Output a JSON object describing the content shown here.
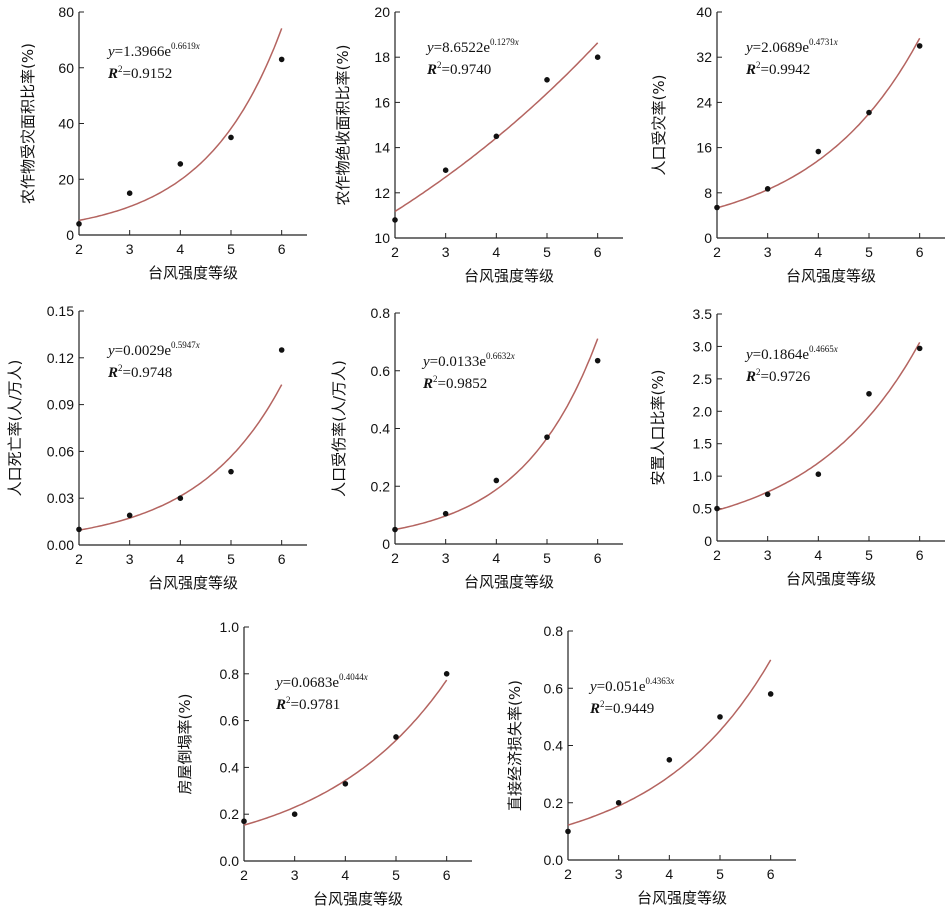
{
  "chart_data": [
    {
      "type": "scatter",
      "xlabel": "台风强度等级",
      "ylabel": "农作物受灾面积比率(%)",
      "x": [
        2,
        3,
        4,
        5,
        6
      ],
      "y": [
        4,
        15,
        25.5,
        35,
        63
      ],
      "xlim": [
        2,
        6.5
      ],
      "ylim": [
        0,
        80
      ],
      "yticks": [
        "0",
        "20",
        "40",
        "60",
        "80"
      ],
      "fit": {
        "a": 1.3966,
        "b": 0.6619,
        "eq_a": "1.3966",
        "eq_b": "0.6619",
        "r2": "0.9152"
      },
      "grid": false
    },
    {
      "type": "scatter",
      "xlabel": "台风强度等级",
      "ylabel": "农作物绝收面积比率(%)",
      "x": [
        2,
        3,
        4,
        5,
        6
      ],
      "y": [
        10.8,
        13,
        14.5,
        17,
        18
      ],
      "xlim": [
        2,
        6.5
      ],
      "ylim": [
        10,
        20
      ],
      "yticks": [
        "10",
        "12",
        "14",
        "16",
        "18",
        "20"
      ],
      "fit": {
        "a": 8.6522,
        "b": 0.1279,
        "eq_a": "8.6522",
        "eq_b": "0.1279",
        "r2": "0.9740"
      },
      "grid": false
    },
    {
      "type": "scatter",
      "xlabel": "台风强度等级",
      "ylabel": "人口受灾率(%)",
      "x": [
        2,
        3,
        4,
        5,
        6
      ],
      "y": [
        5.4,
        8.7,
        15.3,
        22.2,
        34
      ],
      "xlim": [
        2,
        6.5
      ],
      "ylim": [
        0,
        40
      ],
      "yticks": [
        "0",
        "8",
        "16",
        "24",
        "32",
        "40"
      ],
      "fit": {
        "a": 2.0689,
        "b": 0.4731,
        "eq_a": "2.0689",
        "eq_b": "0.4731",
        "r2": "0.9942"
      },
      "grid": false
    },
    {
      "type": "scatter",
      "xlabel": "台风强度等级",
      "ylabel": "人口死亡率(人/万人)",
      "x": [
        2,
        3,
        4,
        5,
        6
      ],
      "y": [
        0.01,
        0.019,
        0.03,
        0.047,
        0.125
      ],
      "xlim": [
        2,
        6.5
      ],
      "ylim": [
        0,
        0.15
      ],
      "yticks": [
        "0.00",
        "0.03",
        "0.06",
        "0.09",
        "0.12",
        "0.15"
      ],
      "fit": {
        "a": 0.0029,
        "b": 0.5947,
        "eq_a": "0.0029",
        "eq_b": "0.5947",
        "r2": "0.9748"
      },
      "grid": false
    },
    {
      "type": "scatter",
      "xlabel": "台风强度等级",
      "ylabel": "人口受伤率(人/万人)",
      "x": [
        2,
        3,
        4,
        5,
        6
      ],
      "y": [
        0.05,
        0.105,
        0.22,
        0.37,
        0.635
      ],
      "xlim": [
        2,
        6.5
      ],
      "ylim": [
        0,
        0.8
      ],
      "yticks": [
        "0",
        "0.2",
        "0.4",
        "0.6",
        "0.8"
      ],
      "fit": {
        "a": 0.0133,
        "b": 0.6632,
        "eq_a": "0.0133",
        "eq_b": "0.6632",
        "r2": "0.9852"
      },
      "grid": false
    },
    {
      "type": "scatter",
      "xlabel": "台风强度等级",
      "ylabel": "安置人口比率(%)",
      "x": [
        2,
        3,
        4,
        5,
        6
      ],
      "y": [
        0.5,
        0.72,
        1.03,
        2.27,
        2.97
      ],
      "xlim": [
        2,
        6.5
      ],
      "ylim": [
        0,
        3.5
      ],
      "yticks": [
        "0",
        "0.5",
        "1.0",
        "1.5",
        "2.0",
        "2.5",
        "3.0",
        "3.5"
      ],
      "fit": {
        "a": 0.1864,
        "b": 0.4665,
        "eq_a": "0.1864",
        "eq_b": "0.4665",
        "r2": "0.9726"
      },
      "grid": false
    },
    {
      "type": "scatter",
      "xlabel": "台风强度等级",
      "ylabel": "房屋倒塌率(%)",
      "x": [
        2,
        3,
        4,
        5,
        6
      ],
      "y": [
        0.17,
        0.2,
        0.33,
        0.53,
        0.8
      ],
      "xlim": [
        2,
        6.5
      ],
      "ylim": [
        0,
        1.0
      ],
      "yticks": [
        "0.0",
        "0.2",
        "0.4",
        "0.6",
        "0.8",
        "1.0"
      ],
      "fit": {
        "a": 0.0683,
        "b": 0.4044,
        "eq_a": "0.0683",
        "eq_b": "0.4044",
        "r2": "0.9781"
      },
      "grid": false
    },
    {
      "type": "scatter",
      "xlabel": "台风强度等级",
      "ylabel": "直接经济损失率(%)",
      "x": [
        2,
        3,
        4,
        5,
        6
      ],
      "y": [
        0.1,
        0.2,
        0.35,
        0.5,
        0.58
      ],
      "xlim": [
        2,
        6.5
      ],
      "ylim": [
        0,
        0.8
      ],
      "yticks": [
        "0.0",
        "0.2",
        "0.4",
        "0.6",
        "0.8"
      ],
      "fit": {
        "a": 0.051,
        "b": 0.4363,
        "eq_a": "0.051",
        "eq_b": "0.4363",
        "r2": "0.9449"
      },
      "grid": false
    }
  ],
  "colors": {
    "fit_curve": "#b46460",
    "points": "#111111",
    "axes": "#222222"
  }
}
